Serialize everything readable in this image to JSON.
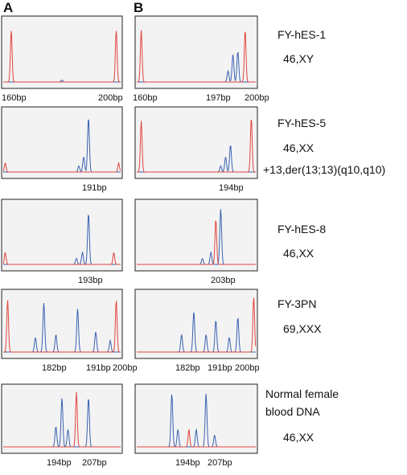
{
  "panel_labels": [
    "A",
    "B"
  ],
  "rows": [
    {
      "a_labels": [
        "160bp",
        "200bp"
      ],
      "b_labels": [
        "160bp",
        "197bp",
        "200bp"
      ],
      "sample_lines": [
        "FY-hES-1"
      ],
      "karyotype_lines": [
        "46,XY"
      ]
    },
    {
      "a_labels": [
        "191bp"
      ],
      "b_labels": [
        "194bp"
      ],
      "sample_lines": [
        "FY-hES-5"
      ],
      "karyotype_lines": [
        "46,XX",
        "+13,der(13;13)(q10,q10)"
      ]
    },
    {
      "a_labels": [
        "193bp"
      ],
      "b_labels": [
        "203bp"
      ],
      "sample_lines": [
        "FY-hES-8"
      ],
      "karyotype_lines": [
        "46,XX"
      ]
    },
    {
      "a_labels": [
        "182bp",
        "191bp",
        "200bp"
      ],
      "b_labels": [
        "182bp",
        "191bp",
        "200bp"
      ],
      "sample_lines": [
        "FY-3PN"
      ],
      "karyotype_lines": [
        "69,XXX"
      ]
    },
    {
      "a_labels": [
        "194bp",
        "207bp"
      ],
      "b_labels": [
        "194bp",
        "207bp"
      ],
      "sample_lines": [
        "Normal female",
        "blood DNA"
      ],
      "karyotype_lines": [
        "46,XX"
      ]
    }
  ]
}
